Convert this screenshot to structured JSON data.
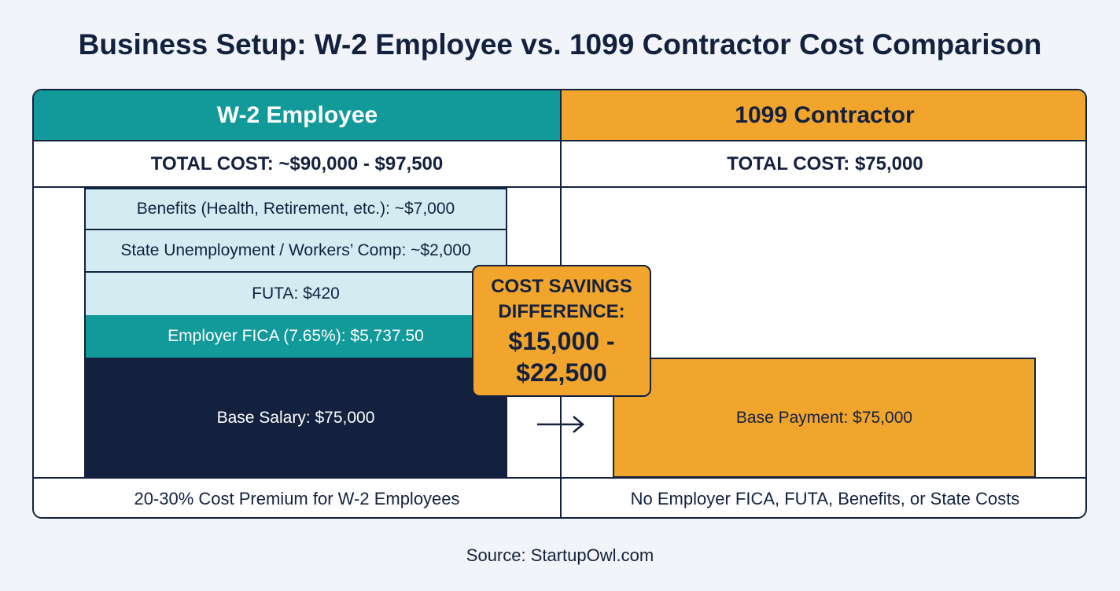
{
  "title": "Business Setup: W-2 Employee vs. 1099 Contractor Cost Comparison",
  "employee": {
    "header": "W-2 Employee",
    "total": "TOTAL COST: ~$90,000 - $97,500",
    "blocks": {
      "benefits": "Benefits (Health, Retirement, etc.): ~$7,000",
      "state": "State Unemployment / Workers’ Comp: ~$2,000",
      "futa": "FUTA: $420",
      "fica": "Employer FICA (7.65%): $5,737.50",
      "base": "Base Salary: $75,000"
    },
    "footer": "20-30% Cost Premium for W-2 Employees"
  },
  "contractor": {
    "header": "1099 Contractor",
    "total": "TOTAL COST: $75,000",
    "base": "Base Payment: $75,000",
    "footer": "No Employer FICA, FUTA, Benefits, or State Costs"
  },
  "savings": {
    "label_line1": "COST SAVINGS",
    "label_line2": "DIFFERENCE:",
    "amount_line1": "$15,000 -",
    "amount_line2": "$22,500"
  },
  "source": "Source: StartupOwl.com",
  "colors": {
    "teal": "#12999a",
    "orange": "#f2a52c",
    "navy": "#13213f",
    "light_teal": "#d3ecf2"
  },
  "icons": {
    "arrow": "arrow-right-icon"
  }
}
